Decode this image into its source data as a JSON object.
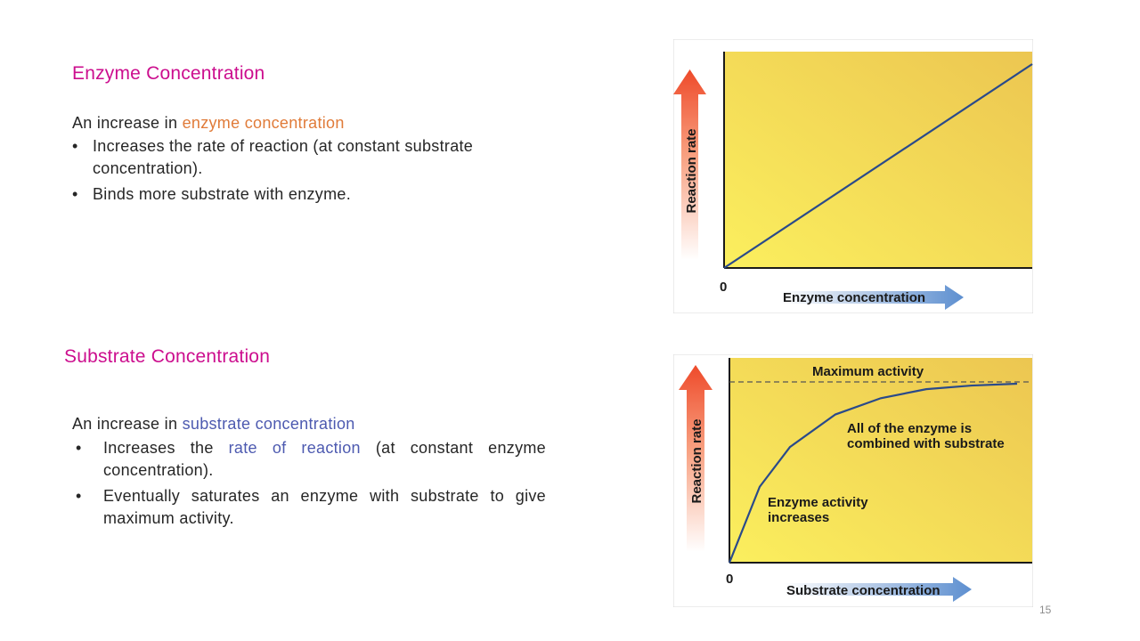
{
  "section1": {
    "heading": "Enzyme Concentration",
    "intro_prefix": "An increase in ",
    "intro_highlight": "enzyme concentration",
    "bullets": [
      "Increases the rate of reaction (at constant substrate concentration).",
      "Binds more substrate with enzyme."
    ]
  },
  "section2": {
    "heading": "Substrate Concentration",
    "intro_prefix": "An increase in ",
    "intro_highlight": "substrate concentration",
    "bullet1_prefix": "Increases the ",
    "bullet1_highlight": "rate of reaction",
    "bullet1_suffix": " (at constant enzyme concentration).",
    "bullet2": "Eventually saturates an enzyme with substrate to give maximum activity."
  },
  "page_number": "15",
  "colors": {
    "heading": "#cc0e8e",
    "highlight_orange": "#e07b39",
    "highlight_blue": "#4d5ab0",
    "plot_yellow": "#f5df4d",
    "curve": "#2a4a8a"
  },
  "chart_data": [
    {
      "type": "line",
      "title": "",
      "xlabel": "Enzyme concentration",
      "ylabel": "Reaction rate",
      "origin_label": "0",
      "series": [
        {
          "x": [
            0,
            1
          ],
          "y": [
            0,
            1
          ]
        }
      ],
      "annotations": []
    },
    {
      "type": "line",
      "title": "",
      "xlabel": "Substrate concentration",
      "ylabel": "Reaction rate",
      "origin_label": "0",
      "series": [
        {
          "x": [
            0,
            0.1,
            0.2,
            0.35,
            0.5,
            0.65,
            0.8,
            0.95
          ],
          "y": [
            0,
            0.42,
            0.64,
            0.82,
            0.91,
            0.96,
            0.98,
            0.99
          ]
        }
      ],
      "max_line": 1.0,
      "annotations": [
        "Maximum activity",
        "All of the enzyme is",
        "combined with substrate",
        "Enzyme activity",
        "increases"
      ]
    }
  ]
}
